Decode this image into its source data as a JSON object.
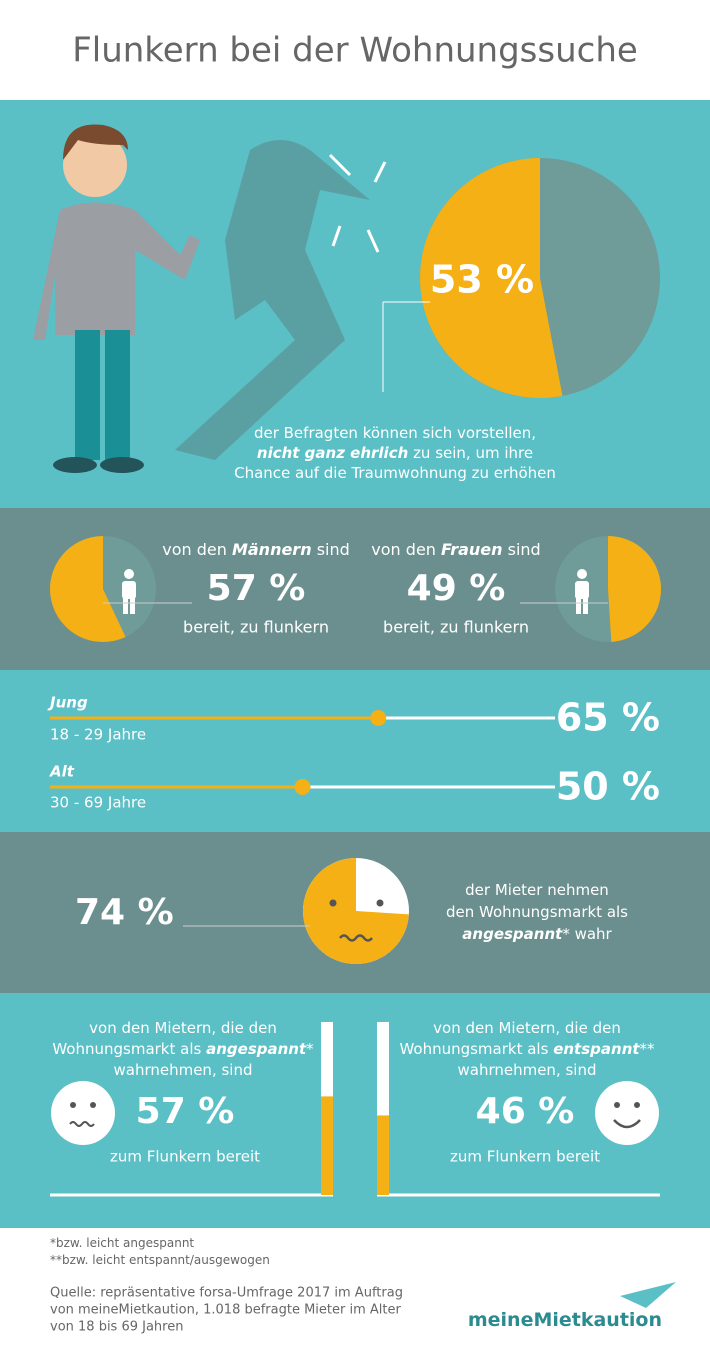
{
  "title": "Flunkern bei der Wohnungssuche",
  "overall": {
    "value": 53,
    "value_label": "53 %",
    "text": [
      "der Befragten können sich vorstellen,",
      "nicht ganz ehrlich",
      "zu sein, um ihre",
      "Chance auf die Traumwohnung zu erhöhen"
    ]
  },
  "gender": [
    {
      "intro": "von den",
      "group": "Männern",
      "suffix": "sind",
      "value": 57,
      "value_label": "57 %",
      "note": "bereit, zu flunkern"
    },
    {
      "intro": "von den",
      "group": "Frauen",
      "suffix": "sind",
      "value": 49,
      "value_label": "49 %",
      "note": "bereit, zu flunkern"
    }
  ],
  "age": {
    "xlim": [
      0,
      100
    ],
    "groups": [
      {
        "name": "Jung",
        "range": "18 - 29 Jahre",
        "value": 65,
        "value_label": "65 %"
      },
      {
        "name": "Alt",
        "range": "30 - 69 Jahre",
        "value": 50,
        "value_label": "50 %"
      }
    ]
  },
  "market": {
    "value": 74,
    "value_label": "74 %",
    "text": [
      "der Mieter nehmen",
      "den Wohnungsmarkt als",
      "angespannt",
      "* wahr"
    ]
  },
  "tenants": [
    {
      "lines": [
        "von den Mietern, die den",
        "Wohnungsmarkt als",
        "angespannt",
        "*",
        "wahrnehmen, sind"
      ],
      "value": 57,
      "value_label": "57 %",
      "note": "zum Flunkern bereit"
    },
    {
      "lines": [
        "von den Mietern, die den",
        "Wohnungsmarkt als",
        "entspannt",
        "**",
        "wahrnehmen, sind"
      ],
      "value": 46,
      "value_label": "46 %",
      "note": "zum Flunkern bereit"
    }
  ],
  "footnotes": [
    {
      "mark": "*",
      "text": "bzw. leicht angespannt"
    },
    {
      "mark": "**",
      "text": "bzw. leicht entspannt/ausgewogen"
    }
  ],
  "source": [
    "Quelle: repräsentative forsa-Umfrage 2017 im Auftrag",
    "von meineMietkaution, 1.018 befragte Mieter im Alter",
    "von 18 bis 69 Jahren"
  ],
  "logo": [
    "meine",
    "Mietkaution"
  ]
}
